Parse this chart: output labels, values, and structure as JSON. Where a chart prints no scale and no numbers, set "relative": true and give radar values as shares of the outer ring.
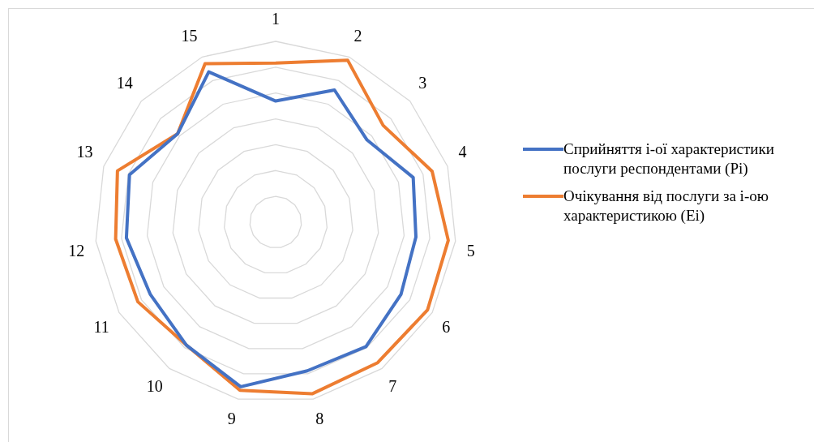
{
  "chart_data": {
    "type": "radar",
    "relative": true,
    "grid": true,
    "legend": "right",
    "categories": [
      "1",
      "2",
      "3",
      "4",
      "5",
      "6",
      "7",
      "8",
      "9",
      "10",
      "11",
      "12",
      "13",
      "14",
      "15"
    ],
    "series": [
      {
        "name": "Сприйняття і-ої характеристики послуги респондентами (Pi)",
        "color": "#4472c4",
        "values": [
          0.67,
          0.8,
          0.68,
          0.8,
          0.78,
          0.8,
          0.85,
          0.84,
          0.93,
          0.84,
          0.8,
          0.83,
          0.85,
          0.73,
          0.91
        ]
      },
      {
        "name": "Очікування від послуги за і-ою характеристикою (Ei)",
        "color": "#ed7d31",
        "values": [
          0.88,
          0.98,
          0.8,
          0.91,
          0.96,
          0.97,
          0.96,
          0.97,
          0.95,
          0.84,
          0.88,
          0.89,
          0.92,
          0.73,
          0.96
        ]
      }
    ]
  }
}
